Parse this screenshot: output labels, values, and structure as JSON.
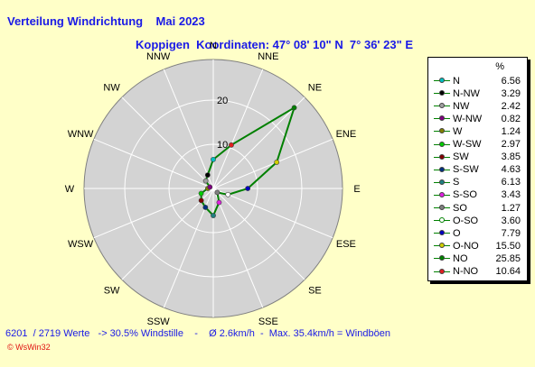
{
  "header": {
    "title": "Verteilung Windrichtung    Mai 2023",
    "subtitle": "Koppigen  Koordinaten: 47° 08' 10\" N  7° 36' 23\" E"
  },
  "legend": {
    "header": "%"
  },
  "footer": {
    "stats": "6201  / 2719 Werte   -> 30.5% Windstille    -    Ø 2.6km/h  -  Max. 35.4km/h = Windböen",
    "logo": "© WsWin32"
  },
  "colors": {
    "background": "#ffffc8",
    "plot_background": "#d3d3d3",
    "grid": "#ffffff",
    "series_line": "#008000",
    "text_blue": "#1a1ae6"
  },
  "chart_data": {
    "type": "radar",
    "title": "Verteilung Windrichtung    Mai 2023",
    "directions": [
      "N",
      "NNE",
      "NE",
      "ENE",
      "E",
      "ESE",
      "SE",
      "SSE",
      "S",
      "SSW",
      "SW",
      "WSW",
      "W",
      "WNW",
      "NW",
      "NNW"
    ],
    "radial_ticks": [
      10,
      20
    ],
    "radial_max": 25.85,
    "grid": true,
    "legend_position": "right",
    "series": [
      {
        "label": "N",
        "direction": "N",
        "value": 6.56,
        "color": "#00c0c0"
      },
      {
        "label": "N-NO",
        "direction": "NNE",
        "value": 10.64,
        "color": "#e02020"
      },
      {
        "label": "NO",
        "direction": "NE",
        "value": 25.85,
        "color": "#008000"
      },
      {
        "label": "O-NO",
        "direction": "ENE",
        "value": 15.5,
        "color": "#d0d000"
      },
      {
        "label": "O",
        "direction": "E",
        "value": 7.79,
        "color": "#0000c0"
      },
      {
        "label": "O-SO",
        "direction": "ESE",
        "value": 3.6,
        "color": "#ffffff"
      },
      {
        "label": "SO",
        "direction": "SE",
        "value": 1.27,
        "color": "#808080"
      },
      {
        "label": "S-SO",
        "direction": "SSE",
        "value": 3.43,
        "color": "#e020e0"
      },
      {
        "label": "S",
        "direction": "S",
        "value": 6.13,
        "color": "#208080"
      },
      {
        "label": "S-SW",
        "direction": "SSW",
        "value": 4.63,
        "color": "#003080"
      },
      {
        "label": "SW",
        "direction": "SW",
        "value": 3.85,
        "color": "#800000"
      },
      {
        "label": "W-SW",
        "direction": "WSW",
        "value": 2.97,
        "color": "#00d000"
      },
      {
        "label": "W",
        "direction": "W",
        "value": 1.24,
        "color": "#808000"
      },
      {
        "label": "W-NW",
        "direction": "WNW",
        "value": 0.82,
        "color": "#800080"
      },
      {
        "label": "NW",
        "direction": "NW",
        "value": 2.42,
        "color": "#a0a0a0"
      },
      {
        "label": "N-NW",
        "direction": "NNW",
        "value": 3.29,
        "color": "#000000"
      }
    ],
    "legend_order": [
      "N",
      "N-NW",
      "NW",
      "W-NW",
      "W",
      "W-SW",
      "SW",
      "S-SW",
      "S",
      "S-SO",
      "SO",
      "O-SO",
      "O",
      "O-NO",
      "NO",
      "N-NO"
    ]
  }
}
